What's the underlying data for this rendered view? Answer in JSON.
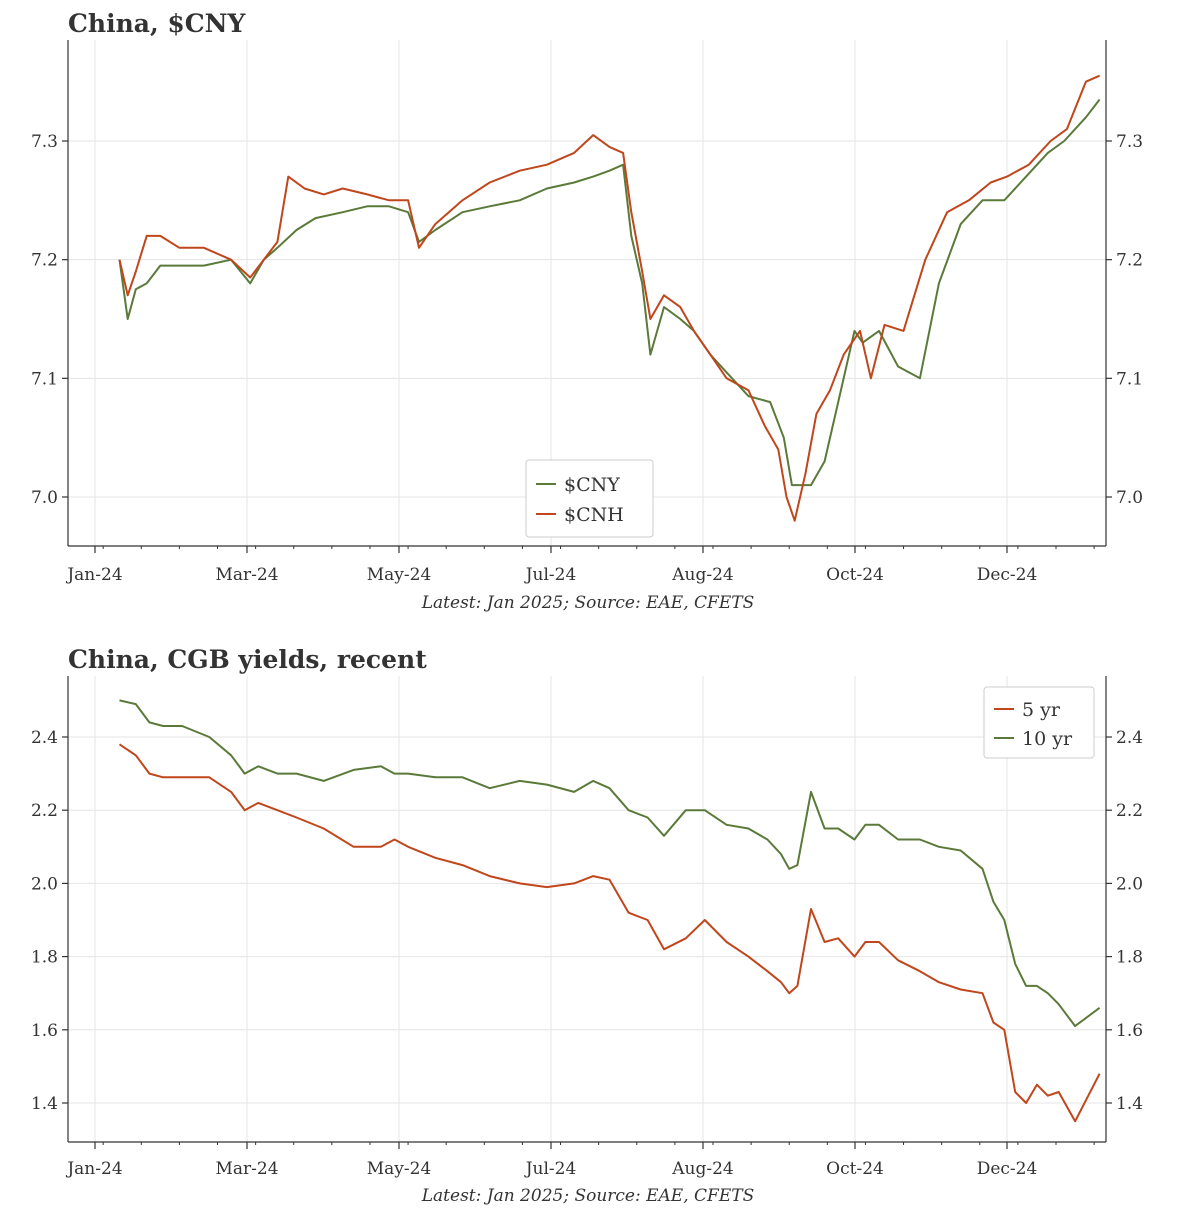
{
  "charts": [
    {
      "title": "China, $CNY",
      "source": "Latest: Jan 2025; Source: EAE, CFETS",
      "legend": [
        "$CNY",
        "$CNH"
      ]
    },
    {
      "title": "China, CGB yields, recent",
      "source": "Latest: Jan 2025; Source: EAE, CFETS",
      "legend": [
        "5 yr",
        "10 yr"
      ]
    }
  ],
  "chart_data": [
    {
      "type": "line",
      "title": "China, $CNY",
      "x_tick_labels": [
        "Jan-24",
        "Mar-24",
        "May-24",
        "Jul-24",
        "Aug-24",
        "Oct-24",
        "Dec-24"
      ],
      "y_ticks": [
        7.0,
        7.1,
        7.2,
        7.3
      ],
      "ylim": [
        6.96,
        7.37
      ],
      "grid": true,
      "legend_position": "bottom-center",
      "colors": {
        "$CNY": "#5b7a3a",
        "$CNH": "#c0461c"
      },
      "series": [
        {
          "name": "$CNY",
          "x": [
            "2024-01-10",
            "2024-01-13",
            "2024-01-16",
            "2024-01-20",
            "2024-01-25",
            "2024-02-01",
            "2024-02-10",
            "2024-02-20",
            "2024-02-27",
            "2024-03-03",
            "2024-03-08",
            "2024-03-15",
            "2024-03-22",
            "2024-04-01",
            "2024-04-10",
            "2024-04-18",
            "2024-04-25",
            "2024-04-29",
            "2024-05-05",
            "2024-05-15",
            "2024-05-25",
            "2024-06-05",
            "2024-06-15",
            "2024-06-25",
            "2024-07-02",
            "2024-07-08",
            "2024-07-13",
            "2024-07-16",
            "2024-07-20",
            "2024-07-23",
            "2024-07-28",
            "2024-08-03",
            "2024-08-08",
            "2024-08-14",
            "2024-08-20",
            "2024-08-28",
            "2024-09-05",
            "2024-09-10",
            "2024-09-13",
            "2024-09-17",
            "2024-09-20",
            "2024-09-25",
            "2024-09-30",
            "2024-10-06",
            "2024-10-09",
            "2024-10-15",
            "2024-10-22",
            "2024-10-30",
            "2024-11-06",
            "2024-11-14",
            "2024-11-22",
            "2024-11-30",
            "2024-12-08",
            "2024-12-16",
            "2024-12-22",
            "2024-12-30",
            "2025-01-04"
          ],
          "values": [
            7.2,
            7.15,
            7.175,
            7.18,
            7.195,
            7.195,
            7.195,
            7.2,
            7.18,
            7.2,
            7.21,
            7.225,
            7.235,
            7.24,
            7.245,
            7.245,
            7.24,
            7.215,
            7.225,
            7.24,
            7.245,
            7.25,
            7.26,
            7.265,
            7.27,
            7.275,
            7.28,
            7.22,
            7.18,
            7.12,
            7.16,
            7.15,
            7.14,
            7.12,
            7.105,
            7.085,
            7.08,
            7.05,
            7.01,
            7.01,
            7.01,
            7.03,
            7.08,
            7.14,
            7.13,
            7.14,
            7.11,
            7.1,
            7.18,
            7.23,
            7.25,
            7.25,
            7.27,
            7.29,
            7.3,
            7.32,
            7.335
          ]
        },
        {
          "name": "$CNH",
          "x": [
            "2024-01-10",
            "2024-01-13",
            "2024-01-16",
            "2024-01-20",
            "2024-01-25",
            "2024-02-01",
            "2024-02-10",
            "2024-02-20",
            "2024-02-27",
            "2024-03-03",
            "2024-03-08",
            "2024-03-12",
            "2024-03-18",
            "2024-03-25",
            "2024-04-01",
            "2024-04-10",
            "2024-04-18",
            "2024-04-25",
            "2024-04-29",
            "2024-05-05",
            "2024-05-15",
            "2024-05-25",
            "2024-06-05",
            "2024-06-15",
            "2024-06-25",
            "2024-07-02",
            "2024-07-08",
            "2024-07-13",
            "2024-07-16",
            "2024-07-20",
            "2024-07-23",
            "2024-07-28",
            "2024-08-03",
            "2024-08-08",
            "2024-08-14",
            "2024-08-20",
            "2024-08-28",
            "2024-09-03",
            "2024-09-08",
            "2024-09-11",
            "2024-09-14",
            "2024-09-18",
            "2024-09-22",
            "2024-09-27",
            "2024-10-02",
            "2024-10-08",
            "2024-10-12",
            "2024-10-17",
            "2024-10-24",
            "2024-11-01",
            "2024-11-09",
            "2024-11-17",
            "2024-11-25",
            "2024-12-01",
            "2024-12-09",
            "2024-12-17",
            "2024-12-23",
            "2024-12-30",
            "2025-01-04"
          ],
          "values": [
            7.2,
            7.17,
            7.19,
            7.22,
            7.22,
            7.21,
            7.21,
            7.2,
            7.185,
            7.2,
            7.215,
            7.27,
            7.26,
            7.255,
            7.26,
            7.255,
            7.25,
            7.25,
            7.21,
            7.23,
            7.25,
            7.265,
            7.275,
            7.28,
            7.29,
            7.305,
            7.295,
            7.29,
            7.24,
            7.19,
            7.15,
            7.17,
            7.16,
            7.14,
            7.12,
            7.1,
            7.09,
            7.06,
            7.04,
            7.0,
            6.98,
            7.02,
            7.07,
            7.09,
            7.12,
            7.14,
            7.1,
            7.145,
            7.14,
            7.2,
            7.24,
            7.25,
            7.265,
            7.27,
            7.28,
            7.3,
            7.31,
            7.35,
            7.355
          ]
        }
      ]
    },
    {
      "type": "line",
      "title": "China, CGB yields, recent",
      "x_tick_labels": [
        "Jan-24",
        "Mar-24",
        "May-24",
        "Jul-24",
        "Aug-24",
        "Oct-24",
        "Dec-24"
      ],
      "y_ticks": [
        1.4,
        1.6,
        1.8,
        2.0,
        2.2,
        2.4
      ],
      "ylim": [
        1.29,
        2.55
      ],
      "grid": true,
      "legend_position": "top-right",
      "colors": {
        "5 yr": "#c0461c",
        "10 yr": "#5b7a3a"
      },
      "series": [
        {
          "name": "5 yr",
          "x": [
            "2024-01-10",
            "2024-01-16",
            "2024-01-21",
            "2024-01-26",
            "2024-02-02",
            "2024-02-12",
            "2024-02-20",
            "2024-02-25",
            "2024-03-01",
            "2024-03-08",
            "2024-03-15",
            "2024-03-25",
            "2024-04-05",
            "2024-04-15",
            "2024-04-20",
            "2024-04-25",
            "2024-05-05",
            "2024-05-15",
            "2024-05-25",
            "2024-06-05",
            "2024-06-15",
            "2024-06-25",
            "2024-07-02",
            "2024-07-08",
            "2024-07-15",
            "2024-07-22",
            "2024-07-28",
            "2024-08-05",
            "2024-08-12",
            "2024-08-20",
            "2024-08-28",
            "2024-09-04",
            "2024-09-09",
            "2024-09-12",
            "2024-09-15",
            "2024-09-20",
            "2024-09-25",
            "2024-09-30",
            "2024-10-06",
            "2024-10-10",
            "2024-10-15",
            "2024-10-22",
            "2024-10-30",
            "2024-11-06",
            "2024-11-14",
            "2024-11-22",
            "2024-11-26",
            "2024-11-30",
            "2024-12-04",
            "2024-12-08",
            "2024-12-12",
            "2024-12-16",
            "2024-12-20",
            "2024-12-26",
            "2025-01-04"
          ],
          "values": [
            2.38,
            2.35,
            2.3,
            2.29,
            2.29,
            2.29,
            2.25,
            2.2,
            2.22,
            2.2,
            2.18,
            2.15,
            2.1,
            2.1,
            2.12,
            2.1,
            2.07,
            2.05,
            2.02,
            2.0,
            1.99,
            2.0,
            2.02,
            2.01,
            1.92,
            1.9,
            1.82,
            1.85,
            1.9,
            1.84,
            1.8,
            1.76,
            1.73,
            1.7,
            1.72,
            1.93,
            1.84,
            1.85,
            1.8,
            1.84,
            1.84,
            1.79,
            1.76,
            1.73,
            1.71,
            1.7,
            1.62,
            1.6,
            1.43,
            1.4,
            1.45,
            1.42,
            1.43,
            1.35,
            1.48
          ]
        },
        {
          "name": "10 yr",
          "x": [
            "2024-01-10",
            "2024-01-16",
            "2024-01-21",
            "2024-01-26",
            "2024-02-02",
            "2024-02-12",
            "2024-02-20",
            "2024-02-25",
            "2024-03-01",
            "2024-03-08",
            "2024-03-15",
            "2024-03-25",
            "2024-04-05",
            "2024-04-15",
            "2024-04-20",
            "2024-04-25",
            "2024-05-05",
            "2024-05-15",
            "2024-05-25",
            "2024-06-05",
            "2024-06-15",
            "2024-06-25",
            "2024-07-02",
            "2024-07-08",
            "2024-07-15",
            "2024-07-22",
            "2024-07-28",
            "2024-08-05",
            "2024-08-12",
            "2024-08-20",
            "2024-08-28",
            "2024-09-04",
            "2024-09-09",
            "2024-09-12",
            "2024-09-15",
            "2024-09-20",
            "2024-09-25",
            "2024-09-30",
            "2024-10-06",
            "2024-10-10",
            "2024-10-15",
            "2024-10-22",
            "2024-10-30",
            "2024-11-06",
            "2024-11-14",
            "2024-11-22",
            "2024-11-26",
            "2024-11-30",
            "2024-12-04",
            "2024-12-08",
            "2024-12-12",
            "2024-12-16",
            "2024-12-20",
            "2024-12-26",
            "2025-01-04"
          ],
          "values": [
            2.5,
            2.49,
            2.44,
            2.43,
            2.43,
            2.4,
            2.35,
            2.3,
            2.32,
            2.3,
            2.3,
            2.28,
            2.31,
            2.32,
            2.3,
            2.3,
            2.29,
            2.29,
            2.26,
            2.28,
            2.27,
            2.25,
            2.28,
            2.26,
            2.2,
            2.18,
            2.13,
            2.2,
            2.2,
            2.16,
            2.15,
            2.12,
            2.08,
            2.04,
            2.05,
            2.25,
            2.15,
            2.15,
            2.12,
            2.16,
            2.16,
            2.12,
            2.12,
            2.1,
            2.09,
            2.04,
            1.95,
            1.9,
            1.78,
            1.72,
            1.72,
            1.7,
            1.67,
            1.61,
            1.66
          ]
        }
      ]
    }
  ]
}
